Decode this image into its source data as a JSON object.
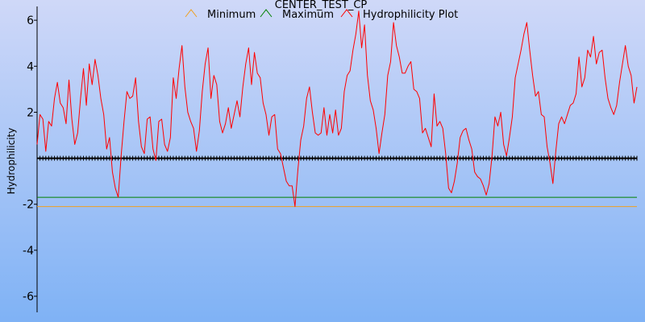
{
  "chart_data": {
    "type": "line",
    "title": "CENTER_TEST_CP",
    "xlabel": "",
    "ylabel": "Hydrophilicity",
    "ylim": [
      -6.7,
      6.6
    ],
    "yticks": [
      6,
      4,
      2,
      -2,
      -4,
      -6
    ],
    "legend_position": "top",
    "grid": false,
    "background_gradient": [
      "#cfd8f8",
      "#7fb2f5"
    ],
    "zero_line_color": "#000000",
    "series": [
      {
        "name": "Minimum",
        "color": "#f0a020",
        "constant": -2.1
      },
      {
        "name": "Maximum",
        "color": "#008000",
        "constant": -1.7
      },
      {
        "name": "Hydrophilicity Plot",
        "color": "#ff0000",
        "values": [
          0.6,
          1.9,
          1.7,
          0.3,
          1.6,
          1.4,
          2.6,
          3.3,
          2.4,
          2.2,
          1.5,
          3.4,
          1.7,
          0.6,
          1.1,
          2.6,
          3.9,
          2.3,
          4.1,
          3.2,
          4.3,
          3.6,
          2.6,
          1.9,
          0.4,
          0.9,
          -0.6,
          -1.3,
          -1.7,
          0.1,
          1.6,
          2.9,
          2.6,
          2.7,
          3.5,
          1.6,
          0.5,
          0.2,
          1.7,
          1.8,
          0.4,
          -0.1,
          1.6,
          1.7,
          0.6,
          0.3,
          0.9,
          3.5,
          2.6,
          3.9,
          4.9,
          3.1,
          2.0,
          1.6,
          1.3,
          0.3,
          1.2,
          2.9,
          4.1,
          4.8,
          2.6,
          3.6,
          3.2,
          1.6,
          1.1,
          1.5,
          2.2,
          1.3,
          1.9,
          2.5,
          1.8,
          3.1,
          4.1,
          4.8,
          3.2,
          4.6,
          3.7,
          3.5,
          2.4,
          1.9,
          1.0,
          1.8,
          1.9,
          0.4,
          0.2,
          -0.4,
          -1.0,
          -1.2,
          -1.2,
          -2.1,
          -0.5,
          0.8,
          1.4,
          2.6,
          3.1,
          2.0,
          1.1,
          1.0,
          1.1,
          2.2,
          1.0,
          1.9,
          1.1,
          2.1,
          1.0,
          1.3,
          2.9,
          3.6,
          3.8,
          4.7,
          5.4,
          6.4,
          4.8,
          5.8,
          3.6,
          2.5,
          2.1,
          1.3,
          0.2,
          1.1,
          1.9,
          3.6,
          4.2,
          5.9,
          4.9,
          4.4,
          3.7,
          3.7,
          4.0,
          4.2,
          3.0,
          2.9,
          2.6,
          1.1,
          1.3,
          0.9,
          0.5,
          2.8,
          1.4,
          1.6,
          1.3,
          0.2,
          -1.3,
          -1.5,
          -1.0,
          -0.2,
          0.9,
          1.2,
          1.3,
          0.8,
          0.4,
          -0.6,
          -0.8,
          -0.9,
          -1.2,
          -1.6,
          -1.1,
          0.1,
          1.8,
          1.4,
          2.0,
          0.6,
          0.1,
          0.9,
          1.8,
          3.5,
          4.1,
          4.7,
          5.4,
          5.9,
          4.7,
          3.6,
          2.7,
          2.9,
          1.9,
          1.8,
          0.5,
          -0.2,
          -1.1,
          0.3,
          1.5,
          1.8,
          1.5,
          1.9,
          2.3,
          2.4,
          2.8,
          4.4,
          3.1,
          3.5,
          4.7,
          4.4,
          5.3,
          4.1,
          4.6,
          4.7,
          3.5,
          2.6,
          2.2,
          1.9,
          2.3,
          3.3,
          4.1,
          4.9,
          4.0,
          3.6,
          2.4,
          3.1
        ]
      }
    ]
  }
}
